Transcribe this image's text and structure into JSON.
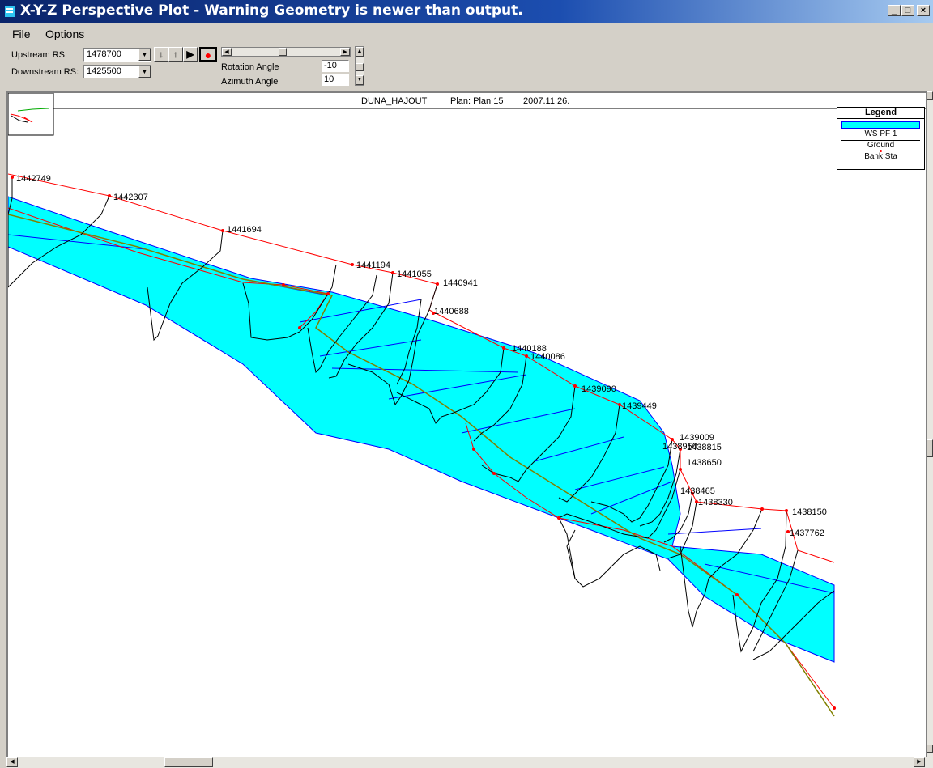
{
  "window": {
    "title": "X-Y-Z Perspective Plot - Warning Geometry is newer than output.",
    "minimize": "_",
    "maximize": "□",
    "close": "×"
  },
  "menu": {
    "file": "File",
    "options": "Options"
  },
  "controls": {
    "upstream_label": "Upstream RS:",
    "upstream_value": "1478700",
    "downstream_label": "Downstream RS:",
    "downstream_value": "1425500",
    "rotation_label": "Rotation Angle",
    "rotation_value": "-10",
    "azimuth_label": "Azimuth Angle",
    "azimuth_value": "10"
  },
  "plot": {
    "header": {
      "river": "DUNA_HAJOUT",
      "plan": "Plan: Plan 15",
      "date": "2007.11.26."
    },
    "legend": {
      "title": "Legend",
      "ws": "WS PF 1",
      "ground": "Ground",
      "bank": "Bank Sta"
    },
    "colors": {
      "water": "#00ffff",
      "bank_line": "#ff0000",
      "ground": "#000000",
      "ws_lines": "#0000ff",
      "channel": "#808000"
    },
    "stations": [
      "1442749",
      "1442307",
      "1441694",
      "1441194",
      "1441055",
      "1440941",
      "1440688",
      "1440188",
      "1440086",
      "1439090",
      "1439449",
      "1439009",
      "1438815",
      "1438650",
      "1438465",
      "1438330",
      "1438150",
      "1437762"
    ]
  }
}
